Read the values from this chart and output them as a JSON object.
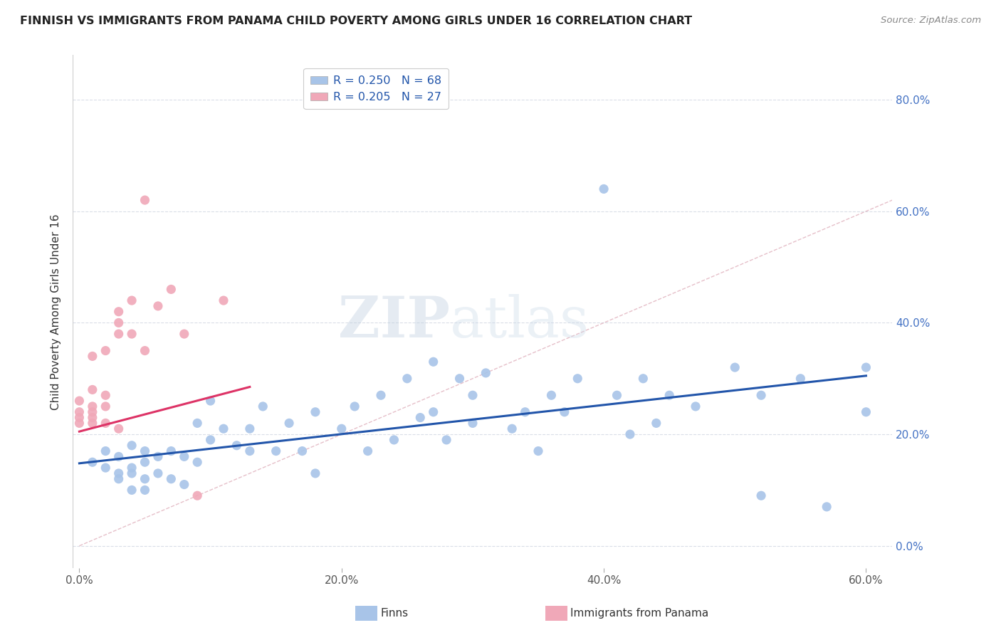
{
  "title": "FINNISH VS IMMIGRANTS FROM PANAMA CHILD POVERTY AMONG GIRLS UNDER 16 CORRELATION CHART",
  "source": "Source: ZipAtlas.com",
  "ylabel": "Child Poverty Among Girls Under 16",
  "xlim": [
    -0.005,
    0.62
  ],
  "ylim": [
    -0.04,
    0.88
  ],
  "R_finns": 0.25,
  "N_finns": 68,
  "R_panama": 0.205,
  "N_panama": 27,
  "color_finns": "#a8c4e8",
  "color_panama": "#f0a8b8",
  "trendline_finns": "#2255aa",
  "trendline_panama": "#dd3366",
  "trendline_diag_color": "#e0b0bc",
  "watermark_color": "#c5d8ec",
  "finn_trend_x0": 0.0,
  "finn_trend_y0": 0.148,
  "finn_trend_x1": 0.6,
  "finn_trend_y1": 0.305,
  "panama_trend_x0": 0.0,
  "panama_trend_y0": 0.205,
  "panama_trend_x1": 0.13,
  "panama_trend_y1": 0.285,
  "finns_x": [
    0.01,
    0.02,
    0.02,
    0.03,
    0.03,
    0.03,
    0.04,
    0.04,
    0.04,
    0.04,
    0.05,
    0.05,
    0.05,
    0.05,
    0.06,
    0.06,
    0.07,
    0.07,
    0.08,
    0.08,
    0.09,
    0.09,
    0.1,
    0.1,
    0.11,
    0.12,
    0.13,
    0.13,
    0.14,
    0.15,
    0.16,
    0.17,
    0.18,
    0.18,
    0.2,
    0.21,
    0.22,
    0.23,
    0.24,
    0.25,
    0.26,
    0.27,
    0.27,
    0.28,
    0.29,
    0.3,
    0.3,
    0.31,
    0.33,
    0.34,
    0.35,
    0.36,
    0.37,
    0.38,
    0.4,
    0.41,
    0.42,
    0.43,
    0.44,
    0.45,
    0.47,
    0.5,
    0.52,
    0.52,
    0.55,
    0.57,
    0.6,
    0.6
  ],
  "finns_y": [
    0.15,
    0.14,
    0.17,
    0.12,
    0.13,
    0.16,
    0.1,
    0.13,
    0.14,
    0.18,
    0.1,
    0.12,
    0.15,
    0.17,
    0.13,
    0.16,
    0.12,
    0.17,
    0.11,
    0.16,
    0.15,
    0.22,
    0.19,
    0.26,
    0.21,
    0.18,
    0.17,
    0.21,
    0.25,
    0.17,
    0.22,
    0.17,
    0.24,
    0.13,
    0.21,
    0.25,
    0.17,
    0.27,
    0.19,
    0.3,
    0.23,
    0.24,
    0.33,
    0.19,
    0.3,
    0.22,
    0.27,
    0.31,
    0.21,
    0.24,
    0.17,
    0.27,
    0.24,
    0.3,
    0.64,
    0.27,
    0.2,
    0.3,
    0.22,
    0.27,
    0.25,
    0.32,
    0.09,
    0.27,
    0.3,
    0.07,
    0.24,
    0.32
  ],
  "panama_x": [
    0.0,
    0.0,
    0.0,
    0.0,
    0.01,
    0.01,
    0.01,
    0.01,
    0.01,
    0.01,
    0.02,
    0.02,
    0.02,
    0.02,
    0.03,
    0.03,
    0.03,
    0.03,
    0.04,
    0.04,
    0.05,
    0.05,
    0.06,
    0.07,
    0.08,
    0.09,
    0.11
  ],
  "panama_y": [
    0.22,
    0.23,
    0.24,
    0.26,
    0.22,
    0.23,
    0.24,
    0.25,
    0.28,
    0.34,
    0.22,
    0.25,
    0.27,
    0.35,
    0.21,
    0.38,
    0.4,
    0.42,
    0.38,
    0.44,
    0.35,
    0.62,
    0.43,
    0.46,
    0.38,
    0.09,
    0.44
  ]
}
